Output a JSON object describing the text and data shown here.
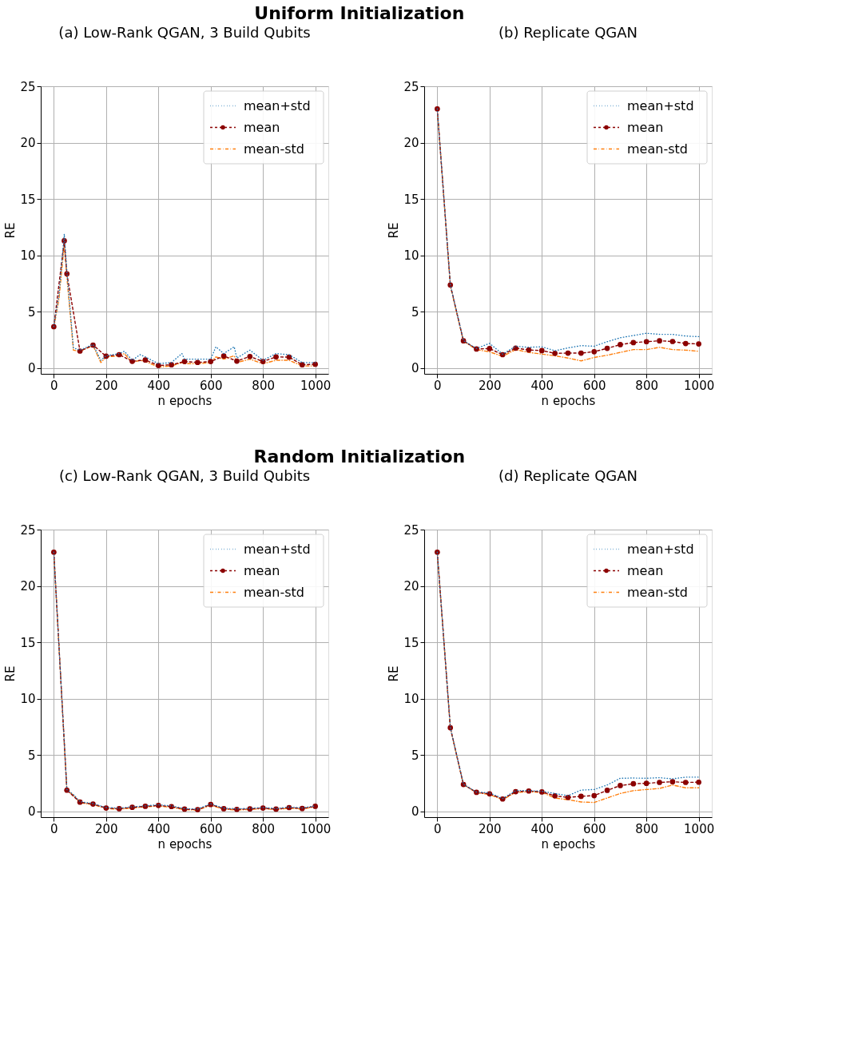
{
  "chart_data": [
    {
      "type": "line",
      "title": "(a) Low-Rank QGAN, 3 Build Qubits",
      "annotations": [
        "Uniform Initialization"
      ],
      "xlabel": "n epochs",
      "ylabel": "RE",
      "xlim": [
        -50,
        1050
      ],
      "ylim": [
        -0.5,
        25
      ],
      "xticks": [
        0,
        200,
        400,
        600,
        800,
        1000
      ],
      "yticks": [
        0,
        5,
        10,
        15,
        20,
        25
      ],
      "grid": true,
      "legend": "top right",
      "series": [
        {
          "name": "mean+std",
          "color": "#1f77b4",
          "line_style": "dotted",
          "marker": "none",
          "x": [
            0,
            20,
            40,
            50,
            75,
            100,
            150,
            180,
            200,
            250,
            270,
            300,
            330,
            350,
            400,
            450,
            490,
            500,
            550,
            600,
            620,
            650,
            690,
            700,
            750,
            800,
            850,
            900,
            950,
            1000
          ],
          "values": [
            3.7,
            6.5,
            11.9,
            8.6,
            1.8,
            1.6,
            2.1,
            0.7,
            1.1,
            1.3,
            1.5,
            0.7,
            1.2,
            1.0,
            0.4,
            0.5,
            1.3,
            0.8,
            0.8,
            0.8,
            1.9,
            1.3,
            1.9,
            0.9,
            1.6,
            0.7,
            1.3,
            1.2,
            0.5,
            0.5
          ]
        },
        {
          "name": "mean",
          "color": "#8b0000",
          "line_style": "dashed",
          "marker": "circle",
          "x": [
            0,
            40,
            50,
            100,
            150,
            200,
            250,
            300,
            350,
            400,
            450,
            500,
            550,
            600,
            650,
            700,
            750,
            800,
            850,
            900,
            950,
            1000
          ],
          "values": [
            3.68,
            11.3,
            8.37,
            1.52,
            2.05,
            1.06,
            1.2,
            0.61,
            0.73,
            0.24,
            0.3,
            0.59,
            0.51,
            0.59,
            1.08,
            0.63,
            1.04,
            0.59,
            1.0,
            0.98,
            0.3,
            0.35
          ]
        },
        {
          "name": "mean-std",
          "color": "#ff7f0e",
          "line_style": "dashdot",
          "marker": "none",
          "x": [
            0,
            20,
            40,
            50,
            75,
            100,
            150,
            180,
            200,
            250,
            270,
            300,
            330,
            350,
            400,
            450,
            490,
            500,
            550,
            600,
            620,
            650,
            690,
            700,
            750,
            800,
            850,
            900,
            950,
            1000
          ],
          "values": [
            3.6,
            6.2,
            11.0,
            8.1,
            1.6,
            1.5,
            2.0,
            0.5,
            1.0,
            1.1,
            1.3,
            0.5,
            0.7,
            0.6,
            0.1,
            0.2,
            0.5,
            0.4,
            0.4,
            0.5,
            1.0,
            0.8,
            1.1,
            0.5,
            0.8,
            0.4,
            0.7,
            0.7,
            0.2,
            0.2
          ]
        }
      ]
    },
    {
      "type": "line",
      "title": "(b) Replicate QGAN",
      "xlabel": "n epochs",
      "ylabel": "RE",
      "xlim": [
        -50,
        1050
      ],
      "ylim": [
        -0.5,
        25
      ],
      "xticks": [
        0,
        200,
        400,
        600,
        800,
        1000
      ],
      "yticks": [
        0,
        5,
        10,
        15,
        20,
        25
      ],
      "grid": true,
      "legend": "top right",
      "series": [
        {
          "name": "mean+std",
          "color": "#1f77b4",
          "line_style": "dotted",
          "marker": "none",
          "x": [
            0,
            50,
            100,
            150,
            200,
            250,
            300,
            350,
            400,
            450,
            500,
            550,
            600,
            650,
            700,
            750,
            800,
            850,
            900,
            950,
            1000
          ],
          "values": [
            23.0,
            7.4,
            2.45,
            1.75,
            2.2,
            1.25,
            1.95,
            1.85,
            1.9,
            1.55,
            1.8,
            2.0,
            1.95,
            2.35,
            2.7,
            2.9,
            3.1,
            3.0,
            3.0,
            2.85,
            2.8
          ]
        },
        {
          "name": "mean",
          "color": "#8b0000",
          "line_style": "dashed",
          "marker": "circle",
          "x": [
            0,
            50,
            100,
            150,
            200,
            250,
            300,
            350,
            400,
            450,
            500,
            550,
            600,
            650,
            700,
            750,
            800,
            850,
            900,
            950,
            1000
          ],
          "values": [
            23.0,
            7.38,
            2.43,
            1.7,
            1.74,
            1.2,
            1.78,
            1.62,
            1.56,
            1.32,
            1.34,
            1.34,
            1.46,
            1.76,
            2.09,
            2.27,
            2.35,
            2.43,
            2.37,
            2.19,
            2.15
          ]
        },
        {
          "name": "mean-std",
          "color": "#ff7f0e",
          "line_style": "dashdot",
          "marker": "none",
          "x": [
            0,
            50,
            100,
            150,
            200,
            250,
            300,
            350,
            400,
            450,
            500,
            550,
            600,
            650,
            700,
            750,
            800,
            850,
            900,
            950,
            1000
          ],
          "values": [
            23.0,
            7.3,
            2.4,
            1.65,
            1.45,
            1.05,
            1.65,
            1.4,
            1.25,
            1.1,
            0.9,
            0.65,
            0.95,
            1.15,
            1.4,
            1.65,
            1.65,
            1.85,
            1.65,
            1.6,
            1.5
          ]
        }
      ]
    },
    {
      "type": "line",
      "title": "(c) Low-Rank QGAN, 3 Build Qubits",
      "annotations": [
        "Random Initialization"
      ],
      "xlabel": "n epochs",
      "ylabel": "RE",
      "xlim": [
        -50,
        1050
      ],
      "ylim": [
        -0.5,
        25
      ],
      "xticks": [
        0,
        200,
        400,
        600,
        800,
        1000
      ],
      "yticks": [
        0,
        5,
        10,
        15,
        20,
        25
      ],
      "grid": true,
      "legend": "top right",
      "series": [
        {
          "name": "mean+std",
          "color": "#1f77b4",
          "line_style": "dotted",
          "marker": "none",
          "x": [
            0,
            50,
            75,
            100,
            150,
            200,
            250,
            300,
            350,
            400,
            450,
            500,
            550,
            600,
            650,
            700,
            750,
            800,
            850,
            900,
            950,
            1000
          ],
          "values": [
            23.0,
            1.95,
            1.5,
            0.88,
            0.7,
            0.35,
            0.3,
            0.42,
            0.5,
            0.6,
            0.5,
            0.25,
            0.22,
            0.68,
            0.3,
            0.24,
            0.28,
            0.36,
            0.26,
            0.4,
            0.32,
            0.5
          ]
        },
        {
          "name": "mean",
          "color": "#8b0000",
          "line_style": "dashed",
          "marker": "circle",
          "x": [
            0,
            50,
            100,
            150,
            200,
            250,
            300,
            350,
            400,
            450,
            500,
            550,
            600,
            650,
            700,
            750,
            800,
            850,
            900,
            950,
            1000
          ],
          "values": [
            23.0,
            1.89,
            0.83,
            0.66,
            0.31,
            0.25,
            0.37,
            0.46,
            0.54,
            0.44,
            0.21,
            0.17,
            0.62,
            0.25,
            0.19,
            0.23,
            0.31,
            0.21,
            0.35,
            0.27,
            0.46
          ]
        },
        {
          "name": "mean-std",
          "color": "#ff7f0e",
          "line_style": "dashdot",
          "marker": "none",
          "x": [
            0,
            50,
            75,
            100,
            150,
            200,
            250,
            300,
            350,
            400,
            450,
            500,
            550,
            600,
            650,
            700,
            750,
            800,
            850,
            900,
            950,
            1000
          ],
          "values": [
            23.0,
            1.85,
            1.45,
            0.78,
            0.62,
            0.27,
            0.2,
            0.32,
            0.42,
            0.48,
            0.38,
            0.17,
            0.12,
            0.56,
            0.2,
            0.14,
            0.18,
            0.26,
            0.16,
            0.3,
            0.22,
            0.42
          ]
        }
      ]
    },
    {
      "type": "line",
      "title": "(d) Replicate QGAN",
      "xlabel": "n epochs",
      "ylabel": "RE",
      "xlim": [
        -50,
        1050
      ],
      "ylim": [
        -0.5,
        25
      ],
      "xticks": [
        0,
        200,
        400,
        600,
        800,
        1000
      ],
      "yticks": [
        0,
        5,
        10,
        15,
        20,
        25
      ],
      "grid": true,
      "legend": "top right",
      "series": [
        {
          "name": "mean+std",
          "color": "#1f77b4",
          "line_style": "dotted",
          "marker": "none",
          "x": [
            0,
            50,
            100,
            150,
            200,
            250,
            300,
            350,
            400,
            450,
            500,
            550,
            600,
            650,
            700,
            750,
            800,
            850,
            900,
            950,
            1000
          ],
          "values": [
            23.0,
            7.45,
            2.42,
            1.72,
            1.65,
            1.15,
            1.85,
            1.85,
            1.8,
            1.6,
            1.4,
            1.9,
            1.95,
            2.35,
            2.95,
            2.97,
            2.95,
            3.0,
            2.9,
            3.05,
            3.05
          ]
        },
        {
          "name": "mean",
          "color": "#8b0000",
          "line_style": "dashed",
          "marker": "circle",
          "x": [
            0,
            50,
            100,
            150,
            200,
            250,
            300,
            350,
            400,
            450,
            500,
            550,
            600,
            650,
            700,
            750,
            800,
            850,
            900,
            950,
            1000
          ],
          "values": [
            23.0,
            7.43,
            2.4,
            1.7,
            1.57,
            1.11,
            1.76,
            1.82,
            1.74,
            1.39,
            1.25,
            1.35,
            1.41,
            1.88,
            2.3,
            2.46,
            2.5,
            2.58,
            2.64,
            2.58,
            2.6
          ]
        },
        {
          "name": "mean-std",
          "color": "#ff7f0e",
          "line_style": "dashdot",
          "marker": "none",
          "x": [
            0,
            50,
            100,
            150,
            200,
            250,
            300,
            350,
            400,
            450,
            500,
            550,
            600,
            650,
            700,
            750,
            800,
            850,
            900,
            950,
            1000
          ],
          "values": [
            23.0,
            7.4,
            2.38,
            1.68,
            1.5,
            1.05,
            1.7,
            1.75,
            1.7,
            1.2,
            1.05,
            0.85,
            0.8,
            1.2,
            1.6,
            1.85,
            1.95,
            2.05,
            2.35,
            2.1,
            2.1
          ]
        }
      ]
    }
  ]
}
